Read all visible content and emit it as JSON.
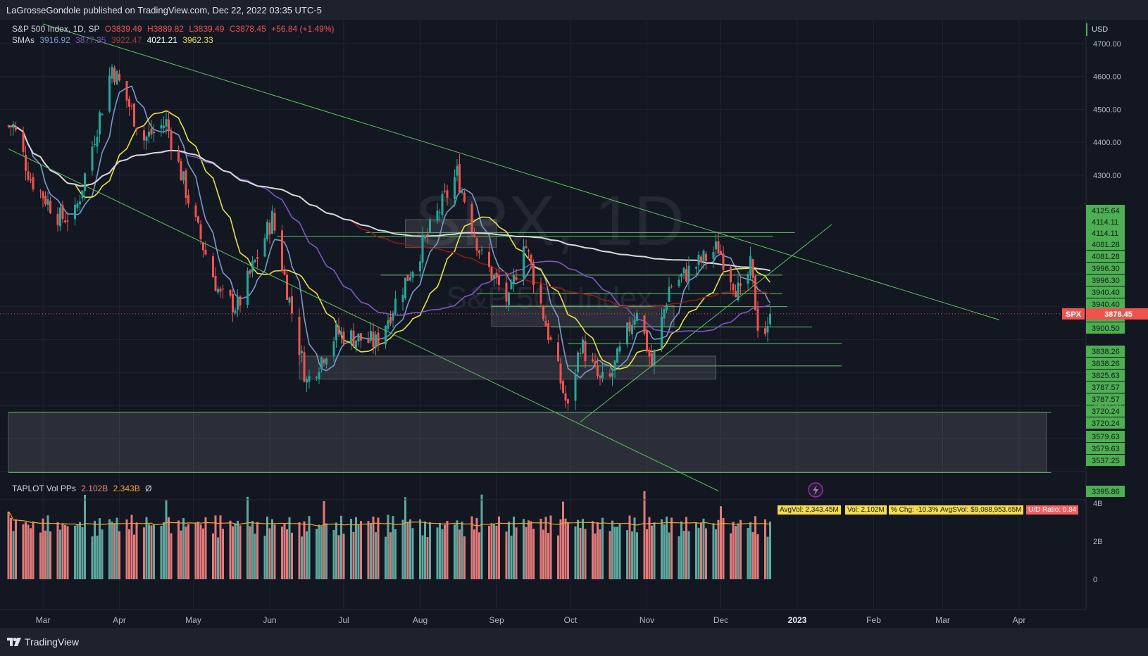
{
  "header": {
    "published": "LaGrosseGondole published on TradingView.com, Dec 22, 2022 03:35 UTC-5"
  },
  "legend": {
    "symbol": "S&P 500 Index, 1D, SP",
    "o": "O3839.49",
    "h": "H3889.82",
    "l": "L3839.49",
    "c": "C3878.45",
    "chg": "+56.84 (+1.49%)",
    "sma_label": "SMAs",
    "sma_values": [
      "3916.92",
      "3877.35",
      "3922.47",
      "4021.21",
      "3962.33"
    ],
    "sma_colors": [
      "#7b9ac9",
      "#7e57c2",
      "#8b1a1a",
      "#ffffff",
      "#e8e04c"
    ]
  },
  "watermark": {
    "symbol": "SPX, 1D",
    "name": "S&P 500 Index"
  },
  "price_axis": {
    "currency": "USD",
    "ticks": [
      "4700.00",
      "4600.00",
      "4500.00",
      "4400.00",
      "4300.00",
      "3600.00"
    ],
    "levels": [
      "4125.64",
      "4114.11",
      "4114.11",
      "4081.28",
      "4081.28",
      "3996.30",
      "3996.30",
      "3940.40",
      "3940.40",
      "3900.50",
      "3900.50",
      "3838.26",
      "3838.26",
      "3825.63",
      "3787.57",
      "3787.57",
      "3720.24",
      "3720.24",
      "3579.63",
      "3579.63",
      "3537.25",
      "3395.86"
    ],
    "last_symbol": "SPX",
    "last_price": "3878.45"
  },
  "time_axis": {
    "labels": [
      "Mar",
      "Apr",
      "May",
      "Jun",
      "Jul",
      "Aug",
      "Sep",
      "Oct",
      "Nov",
      "Dec",
      "2023",
      "Feb",
      "Mar",
      "Apr"
    ]
  },
  "volume_legend": {
    "title": "TAPLOT Vol PPs",
    "v1": "2.102B",
    "v2": "2.343B",
    "v3": "Ø"
  },
  "volume_badges": [
    "AvgVol: 2,343.45M",
    "Vol: 2,102M",
    "% Chg: -10.3%",
    "AvgSVol: $9,088,953.65M",
    "U/D Ratio: 0.84"
  ],
  "volume_axis": {
    "ticks": [
      "4B",
      "2B",
      "0"
    ]
  },
  "footer": {
    "brand": "TradingView"
  },
  "colors": {
    "up": "#26a69a",
    "down": "#ef5350",
    "background": "#131722",
    "level_green": "#4caf50"
  },
  "chart_data": {
    "type": "candlestick",
    "symbol": "SPX",
    "timeframe": "1D",
    "last": 3878.45,
    "ylim": [
      3350,
      4780
    ],
    "anchors": [
      {
        "date": "2022-02-17",
        "close": 4450
      },
      {
        "date": "2022-02-24",
        "close": 4290
      },
      {
        "date": "2022-03-08",
        "close": 4170
      },
      {
        "date": "2022-03-14",
        "close": 4180
      },
      {
        "date": "2022-03-29",
        "close": 4630
      },
      {
        "date": "2022-04-11",
        "close": 4410
      },
      {
        "date": "2022-04-20",
        "close": 4460
      },
      {
        "date": "2022-05-02",
        "close": 4150
      },
      {
        "date": "2022-05-12",
        "close": 3930
      },
      {
        "date": "2022-05-19",
        "close": 3900
      },
      {
        "date": "2022-06-02",
        "close": 4170
      },
      {
        "date": "2022-06-16",
        "close": 3670
      },
      {
        "date": "2022-06-28",
        "close": 3820
      },
      {
        "date": "2022-07-14",
        "close": 3790
      },
      {
        "date": "2022-08-16",
        "close": 4305
      },
      {
        "date": "2022-08-26",
        "close": 4050
      },
      {
        "date": "2022-09-06",
        "close": 3910
      },
      {
        "date": "2022-09-12",
        "close": 4110
      },
      {
        "date": "2022-09-30",
        "close": 3585
      },
      {
        "date": "2022-10-05",
        "close": 3790
      },
      {
        "date": "2022-10-13",
        "close": 3670
      },
      {
        "date": "2022-10-17",
        "close": 3680
      },
      {
        "date": "2022-10-28",
        "close": 3900
      },
      {
        "date": "2022-11-03",
        "close": 3720
      },
      {
        "date": "2022-11-10",
        "close": 3960
      },
      {
        "date": "2022-11-30",
        "close": 4080
      },
      {
        "date": "2022-12-09",
        "close": 3930
      },
      {
        "date": "2022-12-13",
        "close": 4020
      },
      {
        "date": "2022-12-16",
        "close": 3850
      },
      {
        "date": "2022-12-20",
        "close": 3820
      },
      {
        "date": "2022-12-21",
        "close": 3878.45
      }
    ],
    "horizontal_levels": [
      4125.64,
      4114.11,
      4081.28,
      3996.3,
      3940.4,
      3900.5,
      3838.26,
      3825.63,
      3787.57,
      3720.24,
      3579.63,
      3537.25,
      3395.86
    ],
    "zones": [
      {
        "from": "2022-07-26",
        "to": "2022-09-01",
        "low": 4080,
        "high": 4165
      },
      {
        "from": "2022-08-30",
        "to": "2022-11-12",
        "low": 3840,
        "high": 3905
      },
      {
        "from": "2022-06-13",
        "to": "2022-11-29",
        "low": 3680,
        "high": 3750
      },
      {
        "from": "2022-02-15",
        "to": "2023-04-12",
        "low": 3395.86,
        "high": 3579.63
      }
    ],
    "trendlines": [
      {
        "from": [
          "2022-03-01",
          4760
        ],
        "to": [
          "2023-03-24",
          3860
        ]
      },
      {
        "from": [
          "2022-02-15",
          4380
        ],
        "to": [
          "2022-11-30",
          3340
        ]
      },
      {
        "from": [
          "2022-10-05",
          3550
        ],
        "to": [
          "2023-01-15",
          4150
        ]
      }
    ],
    "volume": {
      "unit": "B",
      "avg": 2.343,
      "last": 2.102,
      "ylim": [
        0,
        4.4
      ]
    }
  }
}
